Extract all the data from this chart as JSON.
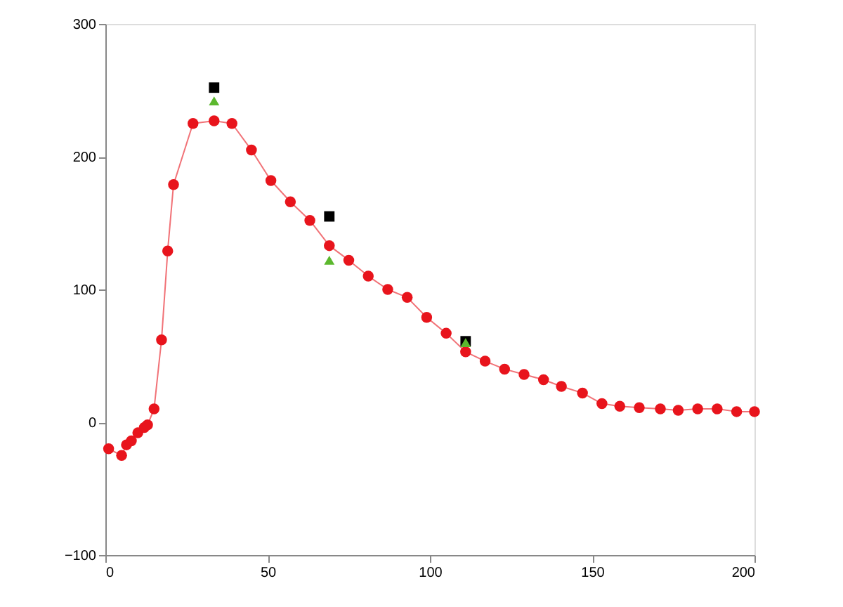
{
  "chart_data": {
    "type": "line",
    "xlim": [
      0,
      200
    ],
    "ylim": [
      -100,
      300
    ],
    "xticks": [
      0,
      50,
      100,
      150,
      200
    ],
    "yticks": [
      -100,
      0,
      100,
      200,
      300
    ],
    "grid": false,
    "series": [
      {
        "type": "line",
        "color": "#e8141c",
        "marker": "circle",
        "x": [
          1,
          5,
          6.5,
          8,
          10,
          12,
          13,
          15,
          17.3,
          19.2,
          21,
          27,
          33.5,
          39,
          45,
          51,
          57,
          63,
          69,
          75,
          81,
          87,
          93,
          99,
          105,
          111,
          117,
          123,
          129,
          135,
          140.5,
          147,
          153,
          158.5,
          164.5,
          171,
          176.5,
          182.5,
          188.5,
          194.5,
          200
        ],
        "values": [
          -20,
          -25,
          -17,
          -14,
          -8,
          -4,
          -2,
          10,
          62,
          129,
          179,
          225,
          227,
          225,
          205,
          182,
          166,
          152,
          133,
          122,
          110,
          100,
          94,
          79,
          67,
          53,
          46,
          40,
          36,
          32,
          27,
          22,
          14,
          12,
          11,
          10,
          9,
          10,
          10,
          8,
          8
        ]
      },
      {
        "type": "scatter",
        "color": "#000000",
        "marker": "square",
        "x": [
          33.5,
          69,
          111
        ],
        "values": [
          252,
          155,
          61
        ]
      },
      {
        "type": "scatter",
        "color": "#5cb82e",
        "marker": "triangle",
        "x": [
          33.5,
          69,
          111
        ],
        "values": [
          242,
          122,
          60
        ]
      }
    ]
  }
}
